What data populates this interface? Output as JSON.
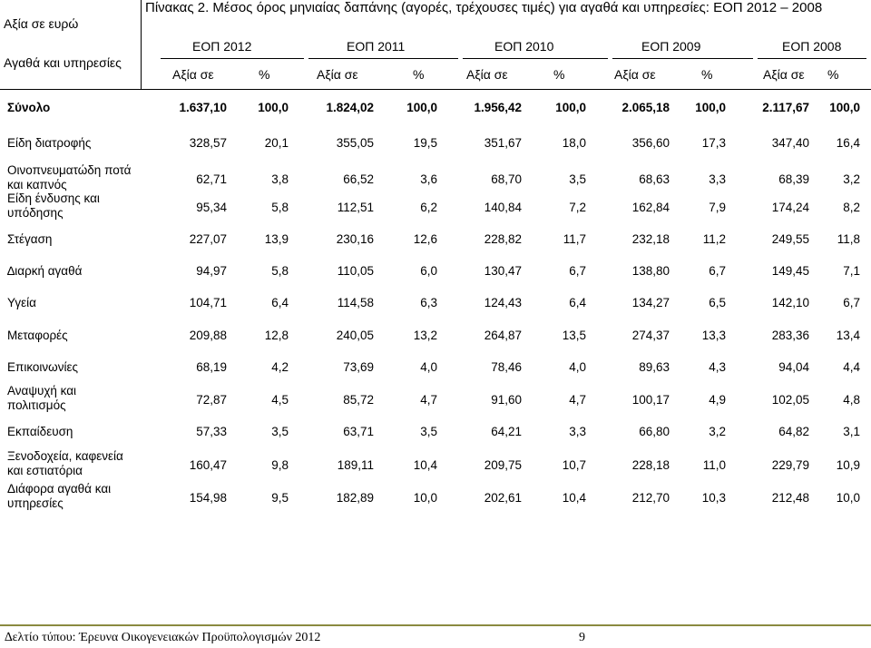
{
  "corner": {
    "line1": "Αξία σε ευρώ",
    "line2": "Αγαθά και υπηρεσίες"
  },
  "title": "Πίνακας 2. Μέσος όρος μηνιαίας δαπάνης (αγορές, τρέχουσες τιμές) για αγαθά και υπηρεσίες: ΕΟΠ 2012 – 2008",
  "years": [
    "ΕΟΠ 2012",
    "ΕΟΠ 2011",
    "ΕΟΠ 2010",
    "ΕΟΠ 2009",
    "ΕΟΠ 2008"
  ],
  "subheaders": {
    "value": "Αξία σε",
    "pct": "%"
  },
  "rows": [
    {
      "label": [
        "Σύνολο"
      ],
      "bold": true,
      "values": [
        "1.637,10",
        "100,0",
        "1.824,02",
        "100,0",
        "1.956,42",
        "100,0",
        "2.065,18",
        "100,0",
        "2.117,67",
        "100,0"
      ]
    },
    {
      "label": [
        "Είδη διατροφής"
      ],
      "values": [
        "328,57",
        "20,1",
        "355,05",
        "19,5",
        "351,67",
        "18,0",
        "356,60",
        "17,3",
        "347,40",
        "16,4"
      ]
    },
    {
      "label": [
        "Οινοπνευματώδη ποτά",
        "και καπνός"
      ],
      "values": [
        "62,71",
        "3,8",
        "66,52",
        "3,6",
        "68,70",
        "3,5",
        "68,63",
        "3,3",
        "68,39",
        "3,2"
      ]
    },
    {
      "label": [
        "Είδη ένδυσης και",
        "υπόδησης"
      ],
      "values": [
        "95,34",
        "5,8",
        "112,51",
        "6,2",
        "140,84",
        "7,2",
        "162,84",
        "7,9",
        "174,24",
        "8,2"
      ]
    },
    {
      "label": [
        "Στέγαση"
      ],
      "values": [
        "227,07",
        "13,9",
        "230,16",
        "12,6",
        "228,82",
        "11,7",
        "232,18",
        "11,2",
        "249,55",
        "11,8"
      ]
    },
    {
      "label": [
        "∆ιαρκή αγαθά"
      ],
      "values": [
        "94,97",
        "5,8",
        "110,05",
        "6,0",
        "130,47",
        "6,7",
        "138,80",
        "6,7",
        "149,45",
        "7,1"
      ]
    },
    {
      "label": [
        "Υγεία"
      ],
      "values": [
        "104,71",
        "6,4",
        "114,58",
        "6,3",
        "124,43",
        "6,4",
        "134,27",
        "6,5",
        "142,10",
        "6,7"
      ]
    },
    {
      "label": [
        "Μεταφορές"
      ],
      "values": [
        "209,88",
        "12,8",
        "240,05",
        "13,2",
        "264,87",
        "13,5",
        "274,37",
        "13,3",
        "283,36",
        "13,4"
      ]
    },
    {
      "label": [
        "Επικοινωνίες"
      ],
      "values": [
        "68,19",
        "4,2",
        "73,69",
        "4,0",
        "78,46",
        "4,0",
        "89,63",
        "4,3",
        "94,04",
        "4,4"
      ]
    },
    {
      "label": [
        "Αναψυχή και",
        "πολιτισμός"
      ],
      "values": [
        "72,87",
        "4,5",
        "85,72",
        "4,7",
        "91,60",
        "4,7",
        "100,17",
        "4,9",
        "102,05",
        "4,8"
      ]
    },
    {
      "label": [
        "Εκπαίδευση"
      ],
      "values": [
        "57,33",
        "3,5",
        "63,71",
        "3,5",
        "64,21",
        "3,3",
        "66,80",
        "3,2",
        "64,82",
        "3,1"
      ]
    },
    {
      "label": [
        "Ξενοδοχεία, καφενεία",
        "και εστιατόρια"
      ],
      "values": [
        "160,47",
        "9,8",
        "189,11",
        "10,4",
        "209,75",
        "10,7",
        "228,18",
        "11,0",
        "229,79",
        "10,9"
      ]
    },
    {
      "label": [
        "Διάφορα αγαθά και",
        "υπηρεσίες"
      ],
      "values": [
        "154,98",
        "9,5",
        "182,89",
        "10,0",
        "202,61",
        "10,4",
        "212,70",
        "10,3",
        "212,48",
        "10,0"
      ]
    }
  ],
  "footer": {
    "text": "∆ελτίο τύπου: Έρευνα Οικογενειακών Προϋπολογισμών 2012",
    "page": "9"
  }
}
